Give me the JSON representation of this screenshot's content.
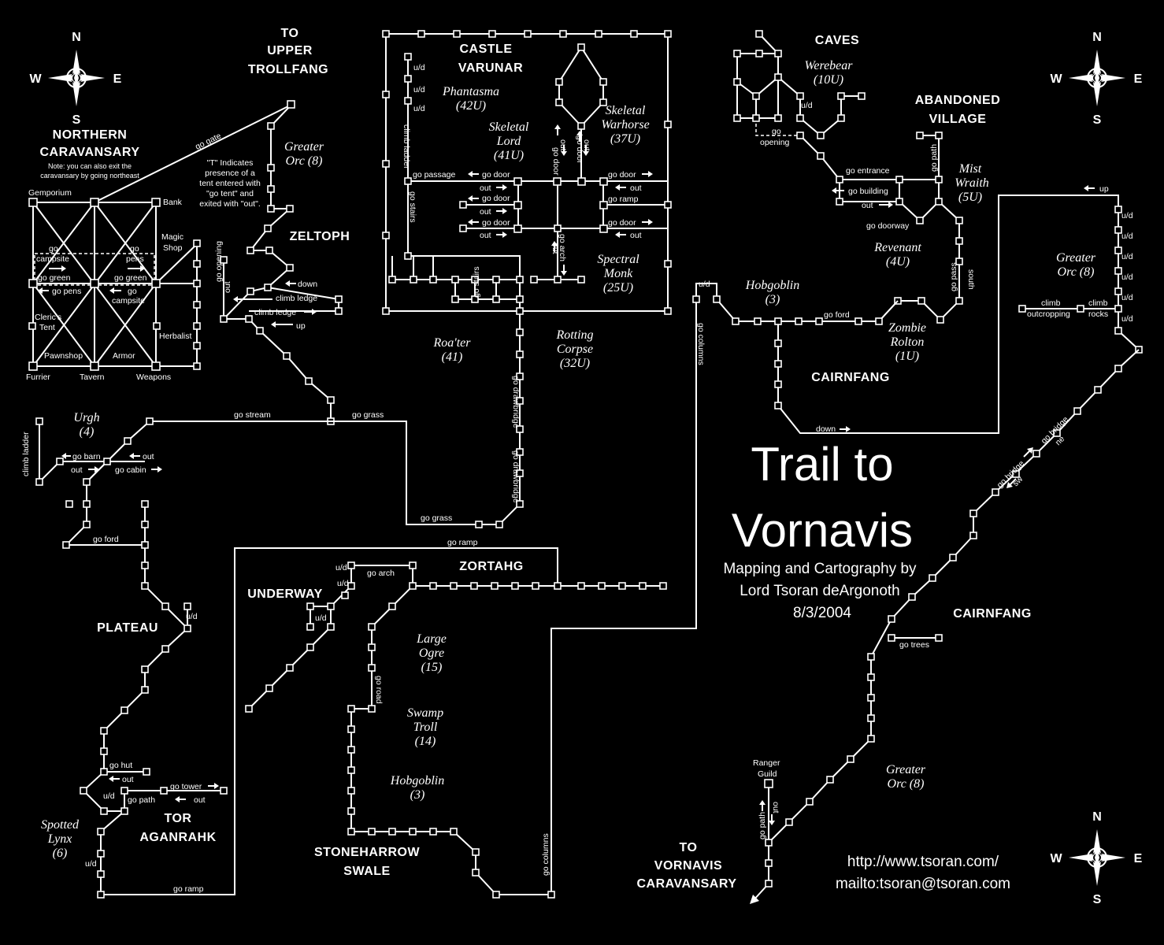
{
  "title": {
    "line1": "Trail to",
    "line2": "Vornavis"
  },
  "credits": {
    "line1": "Mapping and Cartography by",
    "line2": "Lord Tsoran deArgonoth",
    "line3": "8/3/2004"
  },
  "links": {
    "url": "http://www.tsoran.com/",
    "mail": "mailto:tsoran@tsoran.com"
  },
  "compass": {
    "n": "N",
    "s": "S",
    "e": "E",
    "w": "W"
  },
  "areas": {
    "to_upper_1": "TO",
    "to_upper_2": "UPPER",
    "to_upper_3": "TROLLFANG",
    "northern_1": "NORTHERN",
    "northern_2": "CARAVANSARY",
    "castle_1": "CASTLE",
    "castle_2": "VARUNAR",
    "caves": "CAVES",
    "abandoned_1": "ABANDONED",
    "abandoned_2": "VILLAGE",
    "zeltoph": "ZELTOPH",
    "cairnfang_n": "CAIRNFANG",
    "zortahg": "ZORTAHG",
    "underway": "UNDERWAY",
    "plateau": "PLATEAU",
    "cairnfang_s": "CAIRNFANG",
    "tor_1": "TOR",
    "tor_2": "AGANRAHK",
    "stoneharrow_1": "STONEHARROW",
    "stoneharrow_2": "SWALE",
    "to_vorn_1": "TO",
    "to_vorn_2": "VORNAVIS",
    "to_vorn_3": "CARAVANSARY"
  },
  "notes": {
    "caravansary_note_1": "Note:  you can also exit the",
    "caravansary_note_2": "caravansary by going northeast",
    "tent_1": "\"T\" Indicates",
    "tent_2": "presence of a",
    "tent_3": "tent entered with",
    "tent_4": "\"go tent\" and",
    "tent_5": "exited with \"out\"."
  },
  "monsters": {
    "phantasma_1": "Phantasma",
    "phantasma_2": "(42U)",
    "skeletal_lord_1": "Skeletal",
    "skeletal_lord_2": "Lord",
    "skeletal_lord_3": "(41U)",
    "warhorse_1": "Skeletal",
    "warhorse_2": "Warhorse",
    "warhorse_3": "(37U)",
    "spectral_1": "Spectral",
    "spectral_2": "Monk",
    "spectral_3": "(25U)",
    "roater_1": "Roa'ter",
    "roater_2": "(41)",
    "rotting_1": "Rotting",
    "rotting_2": "Corpse",
    "rotting_3": "(32U)",
    "greater_orc_n_1": "Greater",
    "greater_orc_n_2": "Orc (8)",
    "werebear_1": "Werebear",
    "werebear_2": "(10U)",
    "mist_1": "Mist",
    "mist_2": "Wraith",
    "mist_3": "(5U)",
    "revenant_1": "Revenant",
    "revenant_2": "(4U)",
    "hobgoblin_n_1": "Hobgoblin",
    "hobgoblin_n_2": "(3)",
    "zombie_1": "Zombie",
    "zombie_2": "Rolton",
    "zombie_3": "(1U)",
    "greater_orc_e_1": "Greater",
    "greater_orc_e_2": "Orc (8)",
    "urgh_1": "Urgh",
    "urgh_2": "(4)",
    "large_ogre_1": "Large",
    "large_ogre_2": "Ogre",
    "large_ogre_3": "(15)",
    "swamp_troll_1": "Swamp",
    "swamp_troll_2": "Troll",
    "swamp_troll_3": "(14)",
    "hobgoblin_s_1": "Hobgoblin",
    "hobgoblin_s_2": "(3)",
    "lynx_1": "Spotted",
    "lynx_2": "Lynx",
    "lynx_3": "(6)",
    "greater_orc_s_1": "Greater",
    "greater_orc_s_2": "Orc (8)"
  },
  "labels": {
    "gemporium": "Gemporium",
    "bank": "Bank",
    "magic_shop_1": "Magic",
    "magic_shop_2": "Shop",
    "go_campsite_w_1": "go",
    "go_campsite_w_2": "campsite",
    "go_pens_1": "go",
    "go_pens_2": "pens",
    "go_green_w": "go green",
    "go_green_e": "go green",
    "go_pens_b": "go pens",
    "go_campsite_b_1": "go",
    "go_campsite_b_2": "campsite",
    "clerics_1": "Cleric's",
    "clerics_2": "Tent",
    "herbalist": "Herbalist",
    "pawnshop": "Pawnshop",
    "armor": "Armor",
    "furrier": "Furrier",
    "tavern": "Tavern",
    "weapons": "Weapons",
    "go_gate": "go gate",
    "go_opening_z": "go opening",
    "out_z": "out",
    "down": "down",
    "climb_ledge_1": "climb ledge",
    "climb_ledge_2": "climb ledge",
    "up_z": "up",
    "go_stream": "go stream",
    "go_grass_1": "go grass",
    "go_grass_2": "go grass",
    "climb_ladder_c": "climb ladder",
    "go_stairs_c": "go stairs",
    "ud1": "u/d",
    "ud2": "u/d",
    "ud3": "u/d",
    "go_passage": "go passage",
    "go_door_1": "go door",
    "go_door_2": "go door",
    "out_c1": "out",
    "go_door_3": "go door",
    "out_c2": "out",
    "go_door_4": "go door",
    "out_c3": "out",
    "go_door_r1": "go door",
    "out_r1": "out",
    "go_ramp_c": "go ramp",
    "go_door_r2": "go door",
    "out_r2": "out",
    "go_door_v1": "go door",
    "out_v1": "out",
    "go_door_v2": "go door",
    "out_v2": "out",
    "go_arch_c": "go arch",
    "out_v3": "out",
    "go_stairs_c2": "go stairs",
    "go_drawbridge_1": "go drawbridge",
    "go_drawbridge_2": "go drawbridge",
    "ud_caves": "u/d",
    "go_opening_1": "go",
    "go_opening_2": "opening",
    "go_entrance": "go entrance",
    "go_building": "go building",
    "out_av": "out",
    "go_doorway": "go doorway",
    "go_path_av": "go path",
    "go_pass": "go pass",
    "south": "south",
    "ud_hob": "u/d",
    "go_ford_c": "go ford",
    "down_c": "down",
    "go_columns_n": "go columns",
    "up_e": "up",
    "ud_e1": "u/d",
    "ud_e2": "u/d",
    "ud_e3": "u/d",
    "ud_e4": "u/d",
    "ud_e5": "u/d",
    "ud_e6": "u/d",
    "climb_outcropping_1": "climb",
    "climb_outcropping_2": "outcropping",
    "climb_rocks_1": "climb",
    "climb_rocks_2": "rocks",
    "go_bridge_1": "go bridge",
    "ne": "ne",
    "go_bridge_2": "go bridge",
    "sw": "sw",
    "go_trees": "go trees",
    "ranger_1": "Ranger",
    "ranger_2": "Guild",
    "go_path_r": "go path",
    "out_r": "out",
    "climb_ladder_u": "climb ladder",
    "go_barn": "go barn",
    "out_u1": "out",
    "out_u2": "out",
    "go_cabin": "go cabin",
    "go_ford_w": "go ford",
    "go_ramp_top": "go ramp",
    "go_arch_z": "go arch",
    "ud_z1": "u/d",
    "ud_z2": "u/d",
    "ud_z3": "u/d",
    "go_road": "go road",
    "ud_p": "u/d",
    "go_hut": "go hut",
    "out_t1": "out",
    "go_tower": "go tower",
    "out_t2": "out",
    "go_path_t": "go path",
    "ud_t1": "u/d",
    "ud_t2": "u/d",
    "go_ramp_b": "go ramp",
    "go_columns_s": "go columns"
  }
}
